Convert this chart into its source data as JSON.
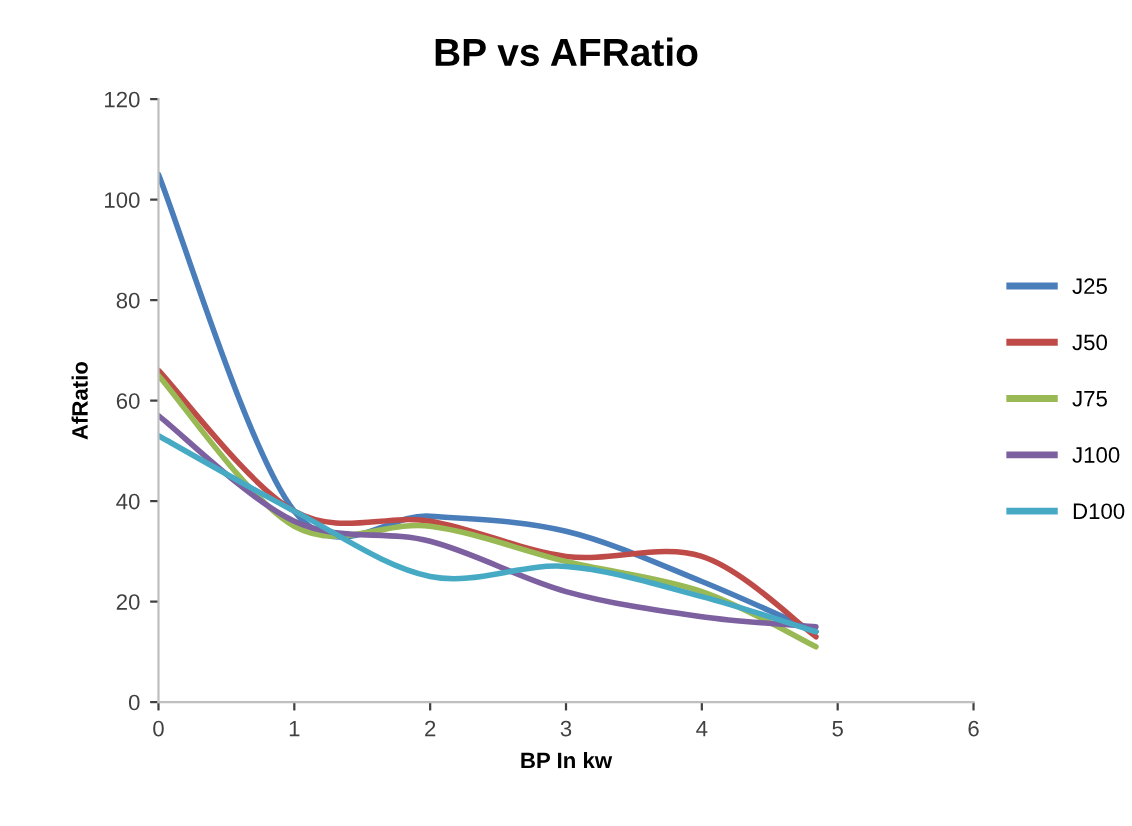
{
  "chart_data": {
    "type": "line",
    "title": "BP vs AFRatio",
    "xlabel": "BP In kw",
    "ylabel": "AfRatio",
    "x": [
      0,
      1,
      2,
      3,
      4,
      4.84
    ],
    "series": [
      {
        "name": "J25",
        "color": "#4a7ebb",
        "values": [
          105,
          38,
          37,
          34,
          24,
          14
        ]
      },
      {
        "name": "J50",
        "color": "#be4b48",
        "values": [
          66,
          38,
          36,
          29,
          29,
          13
        ]
      },
      {
        "name": "J75",
        "color": "#98b954",
        "values": [
          65,
          35,
          35,
          28,
          22,
          11
        ]
      },
      {
        "name": "J100",
        "color": "#7d60a0",
        "values": [
          57,
          36,
          32,
          22,
          17,
          15
        ]
      },
      {
        "name": "D100",
        "color": "#46aac5",
        "values": [
          53,
          38,
          25,
          27,
          21,
          14
        ]
      }
    ],
    "xlim": [
      0,
      6
    ],
    "xticks": [
      0,
      1,
      2,
      3,
      4,
      5,
      6
    ],
    "ylim": [
      0,
      120
    ],
    "yticks": [
      0,
      20,
      40,
      60,
      80,
      100,
      120
    ],
    "grid": false,
    "legend": "right",
    "marker": "none",
    "line_style": "solid"
  }
}
